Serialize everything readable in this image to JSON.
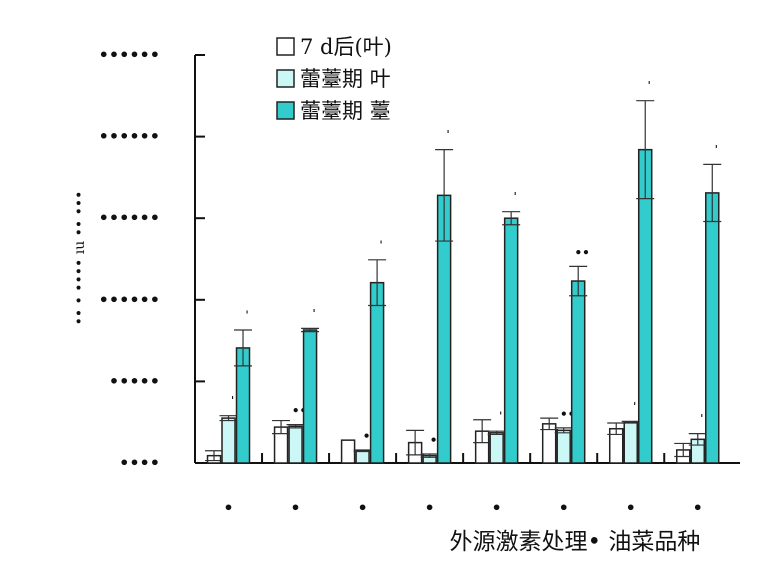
{
  "chart_data": {
    "type": "bar",
    "title": "",
    "xlabel": "外源激素处理• 油菜品种",
    "ylabel": "•• • •••• ıu •• •••",
    "ylim": [
      0,
      5
    ],
    "yticks": [
      0,
      1,
      2,
      3,
      4,
      5
    ],
    "ytick_labels": [
      "••••",
      "•••••",
      "••••••",
      "••••••",
      "••••••",
      "••••••"
    ],
    "categories": [
      "•",
      "•",
      "•",
      "•",
      "•",
      "•",
      "•",
      "•"
    ],
    "series": [
      {
        "name": "7 d后(叶)",
        "color": "#ffffff",
        "values": [
          0.09,
          0.44,
          0.28,
          0.25,
          0.39,
          0.48,
          0.42,
          0.16
        ],
        "errors": [
          0.06,
          0.08,
          0.0,
          0.15,
          0.14,
          0.07,
          0.07,
          0.08
        ]
      },
      {
        "name": "蕾薹期 叶",
        "color": "#ccf7f7",
        "values": [
          0.55,
          0.45,
          0.15,
          0.09,
          0.37,
          0.4,
          0.5,
          0.29
        ],
        "errors": [
          0.03,
          0.02,
          0.01,
          0.02,
          0.02,
          0.03,
          0.01,
          0.07
        ]
      },
      {
        "name": "蕾薹期 薹",
        "color": "#33cccc",
        "values": [
          1.41,
          1.63,
          2.21,
          3.28,
          3.0,
          2.23,
          3.84,
          3.31
        ],
        "errors": [
          0.22,
          0.02,
          0.28,
          0.56,
          0.08,
          0.18,
          0.6,
          0.35
        ]
      }
    ],
    "annotations": [
      [
        "",
        "ˈ",
        "ˈ"
      ],
      [
        "",
        "••",
        "ˈ"
      ],
      [
        "",
        "•",
        "ˈ"
      ],
      [
        "",
        "•",
        "ˈ"
      ],
      [
        "",
        "ˈ",
        "ˈ"
      ],
      [
        "",
        "••",
        "••"
      ],
      [
        "",
        "ˈ",
        "ˈ"
      ],
      [
        "",
        "ˈ",
        "ˈ"
      ]
    ],
    "legend_position": "top-center",
    "grid": false
  }
}
